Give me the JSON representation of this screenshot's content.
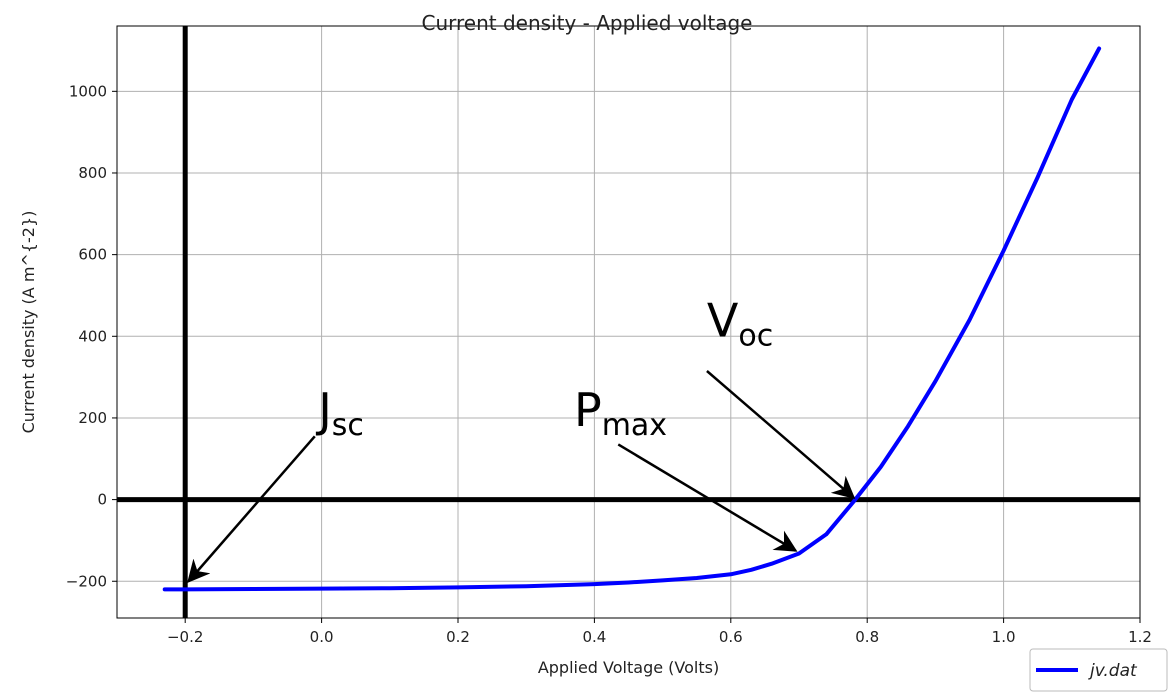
{
  "chart_data": {
    "type": "line",
    "title": "Current density - Applied voltage",
    "xlabel": "Applied Voltage (Volts)",
    "ylabel": "Current density (A m^{-2})",
    "xlim": [
      -0.3,
      1.2
    ],
    "ylim": [
      -290,
      1160
    ],
    "grid": true,
    "legend_position": "bottom-right",
    "x_ticks": [
      -0.2,
      0.0,
      0.2,
      0.4,
      0.6,
      0.8,
      1.0,
      1.2
    ],
    "x_tick_labels": [
      "−0.2",
      "0.0",
      "0.2",
      "0.4",
      "0.6",
      "0.8",
      "1.0",
      "1.2"
    ],
    "y_ticks": [
      -200,
      0,
      200,
      400,
      600,
      800,
      1000
    ],
    "y_tick_labels": [
      "−200",
      "0",
      "200",
      "400",
      "600",
      "800",
      "1000"
    ],
    "series": [
      {
        "name": "jv.dat",
        "color": "#0000ff",
        "x": [
          -0.23,
          -0.2,
          -0.1,
          0.0,
          0.1,
          0.2,
          0.3,
          0.4,
          0.45,
          0.5,
          0.55,
          0.6,
          0.63,
          0.66,
          0.7,
          0.74,
          0.78,
          0.82,
          0.86,
          0.9,
          0.95,
          1.0,
          1.05,
          1.1,
          1.14
        ],
        "y": [
          -220,
          -220,
          -219,
          -218,
          -217,
          -215,
          -212,
          -207,
          -203,
          -198,
          -192,
          -183,
          -172,
          -157,
          -132,
          -85,
          -5,
          80,
          180,
          290,
          440,
          610,
          790,
          980,
          1105
        ]
      }
    ],
    "reference_lines": {
      "vertical_x": -0.2,
      "horizontal_y": 0
    },
    "annotations": [
      {
        "main": "J",
        "sub": "sc",
        "text_x": -0.005,
        "text_y": 180,
        "arrow_from_x": -0.01,
        "arrow_from_y": 155,
        "arrow_to_x": -0.195,
        "arrow_to_y": -200
      },
      {
        "main": "P",
        "sub": "max",
        "text_x": 0.37,
        "text_y": 180,
        "arrow_from_x": 0.435,
        "arrow_from_y": 135,
        "arrow_to_x": 0.695,
        "arrow_to_y": -125
      },
      {
        "main": "V",
        "sub": "oc",
        "text_x": 0.565,
        "text_y": 400,
        "arrow_from_x": 0.565,
        "arrow_from_y": 315,
        "arrow_to_x": 0.78,
        "arrow_to_y": 5
      }
    ]
  }
}
